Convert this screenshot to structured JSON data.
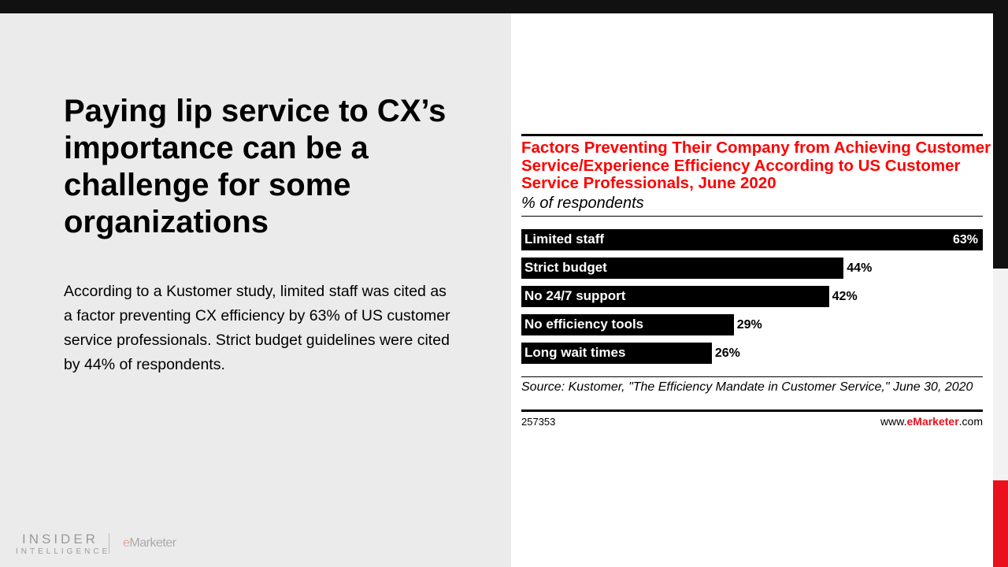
{
  "slide": {
    "headline": "Paying lip service to CX’s importance can be a challenge for some organizations",
    "body": "According to a Kustomer study, limited staff was cited as a factor preventing CX efficiency by 63% of US customer service professionals. Strict budget guidelines were cited by 44% of respondents.",
    "logo": {
      "line1": "INSIDER",
      "line2": "INTELLIGENCE",
      "brand_e": "e",
      "brand_rest": "Marketer"
    }
  },
  "colors": {
    "accent_red": "#e8111c",
    "title_red": "#ff0000",
    "bar": "#000000",
    "left_bg": "#ebebeb"
  },
  "chart_data": {
    "type": "bar",
    "orientation": "horizontal",
    "title": "Factors Preventing Their Company from Achieving Customer Service/Experience Efficiency According to US Customer Service Professionals, June 2020",
    "subtitle": "% of respondents",
    "categories": [
      "Limited staff",
      "Strict budget",
      "No 24/7 support",
      "No efficiency tools",
      "Long wait times"
    ],
    "values": [
      63,
      44,
      42,
      29,
      26
    ],
    "value_labels": [
      "63%",
      "44%",
      "42%",
      "29%",
      "26%"
    ],
    "xlim": [
      0,
      63
    ],
    "grid": false,
    "source": "Source: Kustomer, \"The Efficiency Mandate in Customer Service,\" June 30, 2020",
    "chart_id": "257353",
    "site": {
      "prefix": "www.",
      "brand": "eMarketer",
      "suffix": ".com"
    }
  }
}
